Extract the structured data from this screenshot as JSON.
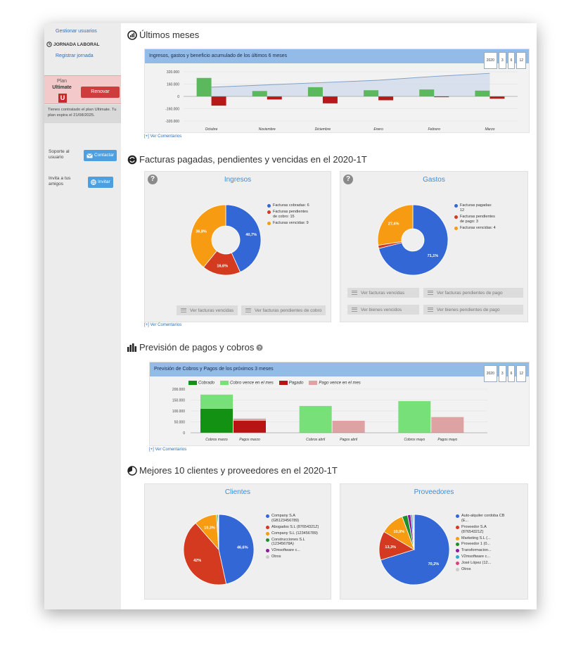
{
  "sidebar": {
    "manage_users": "Gestionar usuarios",
    "jornada_heading": "JORNADA LABORAL",
    "register_jornada": "Registrar jornada",
    "plan_label": "Plan",
    "plan_name": "Ultimate",
    "renew_button": "Renovar",
    "plan_note": "Tienes contratado el plan Ultimate. Tu plan expira el 21/08/2025.",
    "support_label": "Soporte al usuario",
    "contact_button": "Contactar",
    "invite_label": "Invita a tus amigos",
    "invite_button": "Invitar",
    "badge_letter": "U"
  },
  "sections": {
    "ultimos_meses": {
      "title": "Últimos meses",
      "panel_title": "Ingresos, gastos y beneficio acumulado de los últimos 6 meses",
      "ranges": [
        "2020",
        "3",
        "6",
        "12"
      ],
      "comments_link": "[+] Ver Comentarios"
    },
    "facturas": {
      "title": "Facturas pagadas, pendientes y vencidas en el 2020-1T",
      "ingresos_title": "Ingresos",
      "gastos_title": "Gastos",
      "ingresos_buttons": [
        "Ver facturas vencidas",
        "Ver facturas pendientes de cobro"
      ],
      "gastos_buttons": [
        "Ver facturas vencidas",
        "Ver facturas pendientes de pago",
        "Ver bienes vencidos",
        "Ver bienes pendientes de pago"
      ],
      "comments_link": "[+] Ver Comentarios"
    },
    "prevision": {
      "title": "Previsión de pagos y cobros",
      "panel_title": "Previsión de Cobros y Pagos de los próximos 3 meses",
      "ranges": [
        "2020",
        "3",
        "6",
        "12"
      ],
      "comments_link": "[+] Ver Comentarios"
    },
    "mejores": {
      "title": "Mejores 10 clientes y proveedores en el 2020-1T",
      "clientes_title": "Clientes",
      "proveedores_title": "Proveedores"
    }
  },
  "chart_data": [
    {
      "type": "bar",
      "categories": [
        "Octubre",
        "Noviembre",
        "Diciembre",
        "Enero",
        "Febrero",
        "Marzo"
      ],
      "series": [
        {
          "values": [
            240000,
            70000,
            120000,
            80000,
            90000,
            75000
          ],
          "color": "#5cb85c"
        },
        {
          "values": [
            -120000,
            -40000,
            -90000,
            -50000,
            -10000,
            -30000
          ],
          "color": "#b51a1a"
        },
        {
          "values": [
            120000,
            150000,
            180000,
            210000,
            260000,
            300000
          ],
          "color": "#7f9fc4"
        }
      ],
      "yticks": [
        "320.000",
        "160.000",
        "0",
        "-160.000",
        "-320.000"
      ],
      "ylim": [
        -320000,
        320000
      ]
    },
    {
      "type": "pie",
      "labels": [
        "Facturas cobradas: 6",
        "Facturas pendientes de cobro: 15",
        "Facturas vencidas: 9"
      ],
      "values": [
        40.7,
        16.6,
        36.8
      ],
      "data_labels": [
        "40,7%",
        "16,6%",
        "36,8%"
      ],
      "colors": [
        "#3367d6",
        "#d33a1f",
        "#f79b13"
      ]
    },
    {
      "type": "pie",
      "labels": [
        "Facturas pagadas: 12",
        "Facturas pendientes de pago: 3",
        "Facturas vencidas: 4"
      ],
      "values": [
        71.1,
        1.5,
        27.4
      ],
      "data_labels": [
        "71,1%",
        "",
        "27,4%"
      ],
      "colors": [
        "#3367d6",
        "#d33a1f",
        "#f79b13"
      ]
    },
    {
      "type": "bar",
      "categories": [
        "Cobros marzo",
        "Pagos marzo",
        "Cobros abril",
        "Pagos abril",
        "Cobros mayo",
        "Pagos mayo"
      ],
      "series": [
        {
          "name": "Cobrado",
          "values": [
            110000,
            0,
            0,
            0,
            0,
            0
          ],
          "color": "#139113"
        },
        {
          "name": "Cobro vence en el mes",
          "values": [
            65000,
            0,
            123000,
            0,
            145000,
            0
          ],
          "color": "#78e078"
        },
        {
          "name": "Pagado",
          "values": [
            0,
            55000,
            0,
            0,
            0,
            0
          ],
          "color": "#b81414"
        },
        {
          "name": "Pago vence en el mes",
          "values": [
            0,
            10000,
            0,
            55000,
            0,
            72000
          ],
          "color": "#dea2a2"
        }
      ],
      "yticks": [
        "200.000",
        "150.000",
        "100.000",
        "50.000",
        "0"
      ],
      "ylim": [
        0,
        200000
      ]
    },
    {
      "type": "pie",
      "labels": [
        "Company S.A (GB123456789)",
        "Abogados S.L (87654321Z)",
        "Company S.L (123456789)",
        "Construcciones S.L (12345678A)",
        "V2msoftware c...",
        "Otros"
      ],
      "values": [
        46.6,
        42,
        10.3,
        0.5,
        0.4,
        0.2
      ],
      "data_labels": [
        "46,6%",
        "42%",
        "10,3%",
        "",
        "",
        ""
      ],
      "colors": [
        "#3367d6",
        "#d33a1f",
        "#f79b13",
        "#1f8f2e",
        "#8c1a9c",
        "#cccccc"
      ]
    },
    {
      "type": "pie",
      "labels": [
        "Auto-alquiler cordoba CB (E...",
        "Proveedor S.A (87654321Z)",
        "Marketing S.L (...",
        "Proveedor 1 (0...",
        "Transformacion...",
        "V2msoftware c...",
        "José López (12...",
        "Otros"
      ],
      "values": [
        70.2,
        13.3,
        10.9,
        2.5,
        1.5,
        0.8,
        0.5,
        0.3
      ],
      "data_labels": [
        "70,2%",
        "13,3%",
        "10,9%",
        "",
        "",
        "",
        "",
        ""
      ],
      "colors": [
        "#3367d6",
        "#d33a1f",
        "#f79b13",
        "#1f8f2e",
        "#8c1a9c",
        "#30a9c9",
        "#d9457a",
        "#cccccc"
      ]
    }
  ]
}
